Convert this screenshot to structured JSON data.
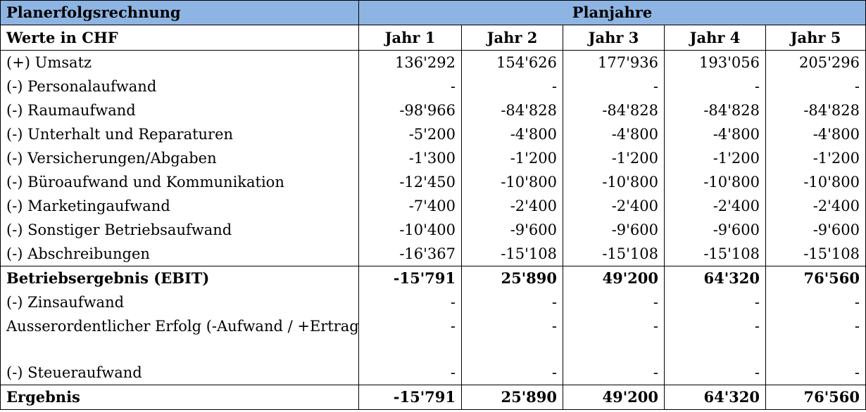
{
  "header": {
    "title": "Planerfolgsrechnung",
    "group_label": "Planjahre",
    "unit_label": "Werte in CHF",
    "years": [
      "Jahr 1",
      "Jahr 2",
      "Jahr 3",
      "Jahr 4",
      "Jahr 5"
    ]
  },
  "rows": [
    {
      "label": "(+) Umsatz",
      "values": [
        "136'292",
        "154'626",
        "177'936",
        "193'056",
        "205'296"
      ]
    },
    {
      "label": "(-) Personalaufwand",
      "values": [
        "-",
        "-",
        "-",
        "-",
        "-"
      ]
    },
    {
      "label": "(-) Raumaufwand",
      "values": [
        "-98'966",
        "-84'828",
        "-84'828",
        "-84'828",
        "-84'828"
      ]
    },
    {
      "label": "(-) Unterhalt und Reparaturen",
      "values": [
        "-5'200",
        "-4'800",
        "-4'800",
        "-4'800",
        "-4'800"
      ]
    },
    {
      "label": "(-) Versicherungen/Abgaben",
      "values": [
        "-1'300",
        "-1'200",
        "-1'200",
        "-1'200",
        "-1'200"
      ]
    },
    {
      "label": "(-) Büroaufwand und Kommunikation",
      "values": [
        "-12'450",
        "-10'800",
        "-10'800",
        "-10'800",
        "-10'800"
      ]
    },
    {
      "label": "(-) Marketingaufwand",
      "values": [
        "-7'400",
        "-2'400",
        "-2'400",
        "-2'400",
        "-2'400"
      ]
    },
    {
      "label": "(-) Sonstiger Betriebsaufwand",
      "values": [
        "-10'400",
        "-9'600",
        "-9'600",
        "-9'600",
        "-9'600"
      ]
    },
    {
      "label": "(-) Abschreibungen",
      "values": [
        "-16'367",
        "-15'108",
        "-15'108",
        "-15'108",
        "-15'108"
      ]
    }
  ],
  "ebit": {
    "label": "Betriebsergebnis (EBIT)",
    "values": [
      "-15'791",
      "25'890",
      "49'200",
      "64'320",
      "76'560"
    ]
  },
  "rows2": [
    {
      "label": "(-) Zinsaufwand",
      "values": [
        "-",
        "-",
        "-",
        "-",
        "-"
      ]
    },
    {
      "label": "Ausserordentlicher Erfolg (-Aufwand / +Ertrag)",
      "values": [
        "-",
        "-",
        "-",
        "-",
        "-"
      ]
    },
    {
      "label": "(-) Steueraufwand",
      "values": [
        "-",
        "-",
        "-",
        "-",
        "-"
      ]
    }
  ],
  "result": {
    "label": "Ergebnis",
    "values": [
      "-15'791",
      "25'890",
      "49'200",
      "64'320",
      "76'560"
    ]
  },
  "colors": {
    "header_fill": "#8db4e2",
    "border": "#000000"
  }
}
